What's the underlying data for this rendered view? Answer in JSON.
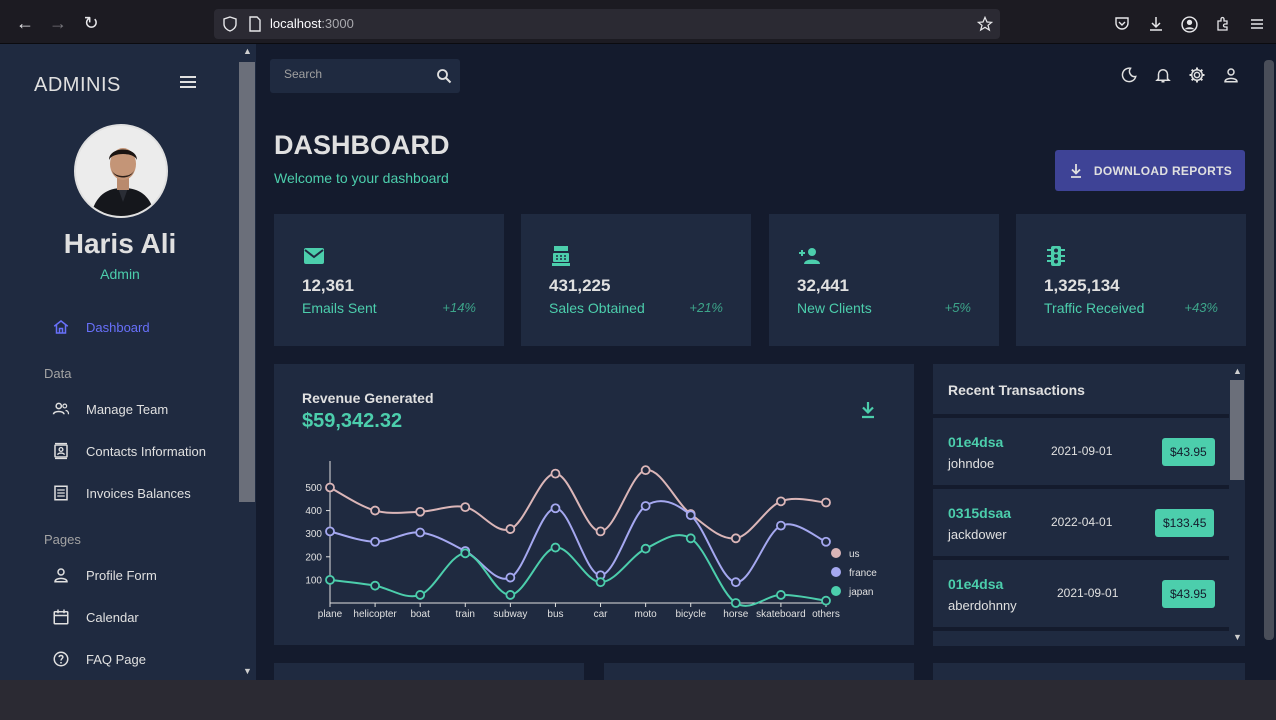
{
  "browser": {
    "url_host": "localhost",
    "url_port": ":3000"
  },
  "sidebar": {
    "logo": "ADMINIS",
    "user_name": "Haris Ali",
    "user_role": "Admin",
    "items": [
      {
        "label": "Dashboard",
        "icon": "home-icon",
        "active": true
      },
      {
        "label": "Manage Team",
        "icon": "people-icon"
      },
      {
        "label": "Contacts Information",
        "icon": "contacts-icon"
      },
      {
        "label": "Invoices Balances",
        "icon": "receipt-icon"
      },
      {
        "label": "Profile Form",
        "icon": "person-icon"
      },
      {
        "label": "Calendar",
        "icon": "calendar-icon"
      },
      {
        "label": "FAQ Page",
        "icon": "help-icon"
      }
    ],
    "sections": [
      "Data",
      "Pages"
    ]
  },
  "topbar": {
    "search_placeholder": "Search",
    "icons": [
      "dark-mode-icon",
      "notifications-icon",
      "settings-icon",
      "person-icon"
    ]
  },
  "header": {
    "title": "DASHBOARD",
    "subtitle": "Welcome to your dashboard",
    "download_label": "DOWNLOAD REPORTS"
  },
  "stats": [
    {
      "value": "12,361",
      "label": "Emails Sent",
      "increase": "+14%",
      "icon": "email-icon"
    },
    {
      "value": "431,225",
      "label": "Sales Obtained",
      "increase": "+21%",
      "icon": "point-of-sale-icon"
    },
    {
      "value": "32,441",
      "label": "New Clients",
      "increase": "+5%",
      "icon": "person-add-icon"
    },
    {
      "value": "1,325,134",
      "label": "Traffic Received",
      "increase": "+43%",
      "icon": "traffic-icon"
    }
  ],
  "revenue": {
    "title": "Revenue Generated",
    "total": "$59,342.32"
  },
  "chart_data": {
    "type": "line",
    "categories": [
      "plane",
      "helicopter",
      "boat",
      "train",
      "subway",
      "bus",
      "car",
      "moto",
      "bicycle",
      "horse",
      "skateboard",
      "others"
    ],
    "series": [
      {
        "name": "us",
        "color": "#dbb6b8",
        "values": [
          500,
          400,
          395,
          415,
          320,
          560,
          310,
          575,
          385,
          280,
          440,
          435
        ]
      },
      {
        "name": "france",
        "color": "#a5a8f0",
        "values": [
          310,
          265,
          305,
          225,
          110,
          410,
          120,
          420,
          380,
          90,
          335,
          265
        ]
      },
      {
        "name": "japan",
        "color": "#4cceac",
        "values": [
          100,
          75,
          35,
          215,
          35,
          240,
          90,
          235,
          280,
          0,
          35,
          10
        ]
      }
    ],
    "yticks": [
      100,
      200,
      300,
      400,
      500
    ],
    "ylim": [
      0,
      580
    ],
    "legend": "right",
    "grid": false
  },
  "transactions": {
    "title": "Recent Transactions",
    "rows": [
      {
        "txId": "01e4dsa",
        "user": "johndoe",
        "date": "2021-09-01",
        "cost": "$43.95"
      },
      {
        "txId": "0315dsaa",
        "user": "jackdower",
        "date": "2022-04-01",
        "cost": "$133.45"
      },
      {
        "txId": "01e4dsa",
        "user": "aberdohnny",
        "date": "2021-09-01",
        "cost": "$43.95"
      }
    ]
  },
  "colors": {
    "accent": "#4cceac",
    "primary_bg": "#141b2d",
    "card_bg": "#1f2a40",
    "button": "#3e4396",
    "active_menu": "#6870fa"
  }
}
